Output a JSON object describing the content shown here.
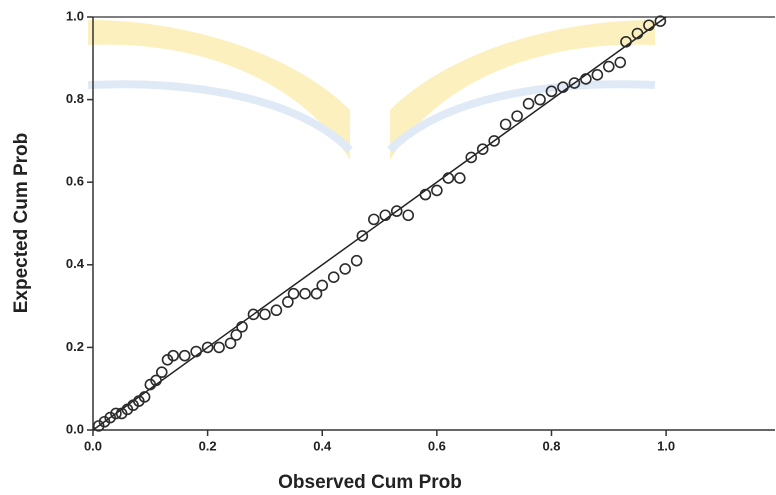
{
  "chart_data": {
    "type": "scatter",
    "xlabel": "Observed Cum Prob",
    "ylabel": "Expected Cum Prob",
    "color": "#2b2b2b",
    "reference_line": true,
    "xlim": [
      0,
      1.19
    ],
    "ylim": [
      0,
      1
    ],
    "xticks": [
      {
        "value": 0,
        "label": "0.0"
      },
      0.2,
      0.4,
      0.6,
      0.8,
      {
        "value": 1,
        "label": "1.0"
      }
    ],
    "yticks": [
      {
        "value": 0,
        "label": "0.0"
      },
      0.2,
      0.4,
      0.6,
      0.8,
      {
        "value": 1,
        "label": "1.0"
      }
    ],
    "x": [
      0.01,
      0.02,
      0.03,
      0.04,
      0.05,
      0.06,
      0.07,
      0.08,
      0.09,
      0.1,
      0.11,
      0.12,
      0.13,
      0.14,
      0.16,
      0.18,
      0.2,
      0.22,
      0.24,
      0.25,
      0.26,
      0.28,
      0.3,
      0.32,
      0.34,
      0.35,
      0.37,
      0.39,
      0.4,
      0.42,
      0.44,
      0.46,
      0.47,
      0.49,
      0.51,
      0.53,
      0.55,
      0.58,
      0.6,
      0.62,
      0.64,
      0.66,
      0.68,
      0.7,
      0.72,
      0.74,
      0.76,
      0.78,
      0.8,
      0.82,
      0.84,
      0.86,
      0.88,
      0.9,
      0.92,
      0.93,
      0.95,
      0.97,
      0.99
    ],
    "values": [
      0.01,
      0.02,
      0.03,
      0.04,
      0.04,
      0.05,
      0.06,
      0.07,
      0.08,
      0.11,
      0.12,
      0.14,
      0.17,
      0.18,
      0.18,
      0.19,
      0.2,
      0.2,
      0.21,
      0.23,
      0.25,
      0.28,
      0.28,
      0.29,
      0.31,
      0.33,
      0.33,
      0.33,
      0.35,
      0.37,
      0.39,
      0.41,
      0.47,
      0.51,
      0.52,
      0.53,
      0.52,
      0.57,
      0.58,
      0.61,
      0.61,
      0.66,
      0.68,
      0.7,
      0.74,
      0.76,
      0.79,
      0.8,
      0.82,
      0.83,
      0.84,
      0.85,
      0.86,
      0.88,
      0.89,
      0.94,
      0.96,
      0.98,
      0.99
    ]
  }
}
